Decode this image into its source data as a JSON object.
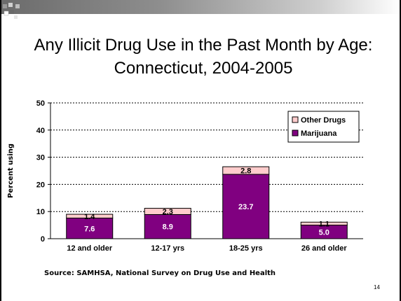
{
  "slide": {
    "title": "Any Illicit Drug Use in the Past Month by Age: Connecticut, 2004-2005",
    "source": "Source: SAMHSA, National Survey on Drug Use and Health",
    "page_number": "14"
  },
  "chart_data": {
    "type": "bar",
    "stacked": true,
    "title": "",
    "xlabel": "",
    "ylabel": "Percent using",
    "ylim": [
      0,
      50
    ],
    "yticks": [
      0,
      10,
      20,
      30,
      40,
      50
    ],
    "grid": true,
    "legend_position": "top-right",
    "categories": [
      "12 and older",
      "12-17 yrs",
      "18-25 yrs",
      "26 and older"
    ],
    "series": [
      {
        "name": "Marijuana",
        "values": [
          7.6,
          8.9,
          23.7,
          5.0
        ],
        "labels": [
          "7.6",
          "8.9",
          "23.7",
          "5.0"
        ],
        "color": "#800080"
      },
      {
        "name": "Other Drugs",
        "values": [
          1.4,
          2.3,
          2.8,
          1.1
        ],
        "labels": [
          "1.4",
          "2.3",
          "2.8",
          "1.1"
        ],
        "color": "#ffcccc"
      }
    ]
  }
}
